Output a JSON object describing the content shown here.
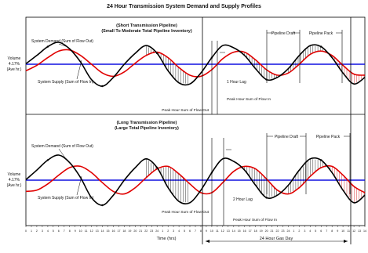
{
  "title": "24 Hour Transmission System Demand and Supply Profiles",
  "xlabel": "Time (hrs)",
  "gas_day_label": "24 Hour Gas Day",
  "chart_data": [
    {
      "type": "line",
      "panel": "top",
      "subtitle_line1": "(Short Transmission Pipeline)",
      "subtitle_line2": "(Small To Moderate Total Pipeline Inventory)",
      "ylabel_line1": "Volume",
      "ylabel_line2": "4.17%",
      "ylabel_line3": "(Ave hr.)",
      "series": [
        {
          "name": "System Demand (Sum of Flow Out)",
          "color": "#000000",
          "x": [
            0,
            2,
            4,
            6,
            8,
            10,
            12,
            14,
            16,
            18,
            20,
            22,
            24,
            26,
            28,
            30,
            32,
            34,
            36,
            38,
            40,
            42,
            44,
            46,
            48,
            50,
            52,
            54,
            56,
            58,
            60,
            62
          ],
          "y": [
            0.02,
            0.4,
            0.8,
            1.0,
            0.7,
            0.1,
            -0.7,
            -1.0,
            -0.6,
            0.0,
            0.5,
            0.85,
            0.5,
            -0.3,
            -0.85,
            -0.9,
            -0.4,
            0.3,
            0.85,
            0.75,
            0.4,
            -0.2,
            -0.7,
            -0.6,
            -0.2,
            0.4,
            0.85,
            0.8,
            0.3,
            -0.4,
            -0.9,
            -0.6
          ]
        },
        {
          "name": "System Supply (Sum of Flow In)",
          "color": "#e00000",
          "x": [
            0,
            2,
            4,
            6,
            8,
            10,
            12,
            14,
            16,
            18,
            20,
            22,
            24,
            26,
            28,
            30,
            32,
            34,
            36,
            38,
            40,
            42,
            44,
            46,
            48,
            50,
            52,
            54,
            56,
            58,
            60,
            62
          ],
          "y": [
            -0.3,
            -0.05,
            0.3,
            0.6,
            0.65,
            0.4,
            0.0,
            -0.4,
            -0.55,
            -0.35,
            0.05,
            0.4,
            0.55,
            0.3,
            -0.15,
            -0.5,
            -0.55,
            -0.25,
            0.25,
            0.55,
            0.55,
            0.2,
            -0.25,
            -0.5,
            -0.4,
            0.0,
            0.45,
            0.6,
            0.4,
            -0.05,
            -0.45,
            -0.5
          ]
        }
      ],
      "average_label": "4.17%",
      "annotations": {
        "demand_label": "System Demand (Sum of Flow Out)",
        "supply_label": "System Supply (Sum of Flow In)",
        "lag_label": "1 Hour Lag",
        "peak_out_label": "Peak Hour Sum of Flow Out",
        "peak_in_label": "Peak Hour Sum of Flow In",
        "draft_label": "Pipeline Draft",
        "pack_label": "Pipeline Pack"
      }
    },
    {
      "type": "line",
      "panel": "bottom",
      "subtitle_line1": "(Long Transmission Pipeline)",
      "subtitle_line2": "(Large Total Pipeline Inventory)",
      "ylabel_line1": "Volume",
      "ylabel_line2": "4.17%",
      "ylabel_line3": "(Ave hr.)",
      "series": [
        {
          "name": "System Demand (Sum of Flow Out)",
          "color": "#000000",
          "x": [
            0,
            2,
            4,
            6,
            8,
            10,
            12,
            14,
            16,
            18,
            20,
            22,
            24,
            26,
            28,
            30,
            32,
            34,
            36,
            38,
            40,
            42,
            44,
            46,
            48,
            50,
            52,
            54,
            56,
            58,
            60,
            62
          ],
          "y": [
            0.02,
            0.4,
            0.8,
            1.0,
            0.7,
            0.1,
            -0.7,
            -1.0,
            -0.6,
            0.0,
            0.5,
            0.85,
            0.5,
            -0.3,
            -0.85,
            -0.9,
            -0.4,
            0.3,
            0.85,
            0.75,
            0.4,
            -0.2,
            -0.7,
            -0.6,
            -0.2,
            0.4,
            0.85,
            0.8,
            0.3,
            -0.4,
            -0.9,
            -0.6
          ]
        },
        {
          "name": "System Supply (Sum of Flow In)",
          "color": "#e00000",
          "x": [
            0,
            2,
            4,
            6,
            8,
            10,
            12,
            14,
            16,
            18,
            20,
            22,
            24,
            26,
            28,
            30,
            32,
            34,
            36,
            38,
            40,
            42,
            44,
            46,
            48,
            50,
            52,
            54,
            56,
            58,
            60,
            62
          ],
          "y": [
            -0.45,
            -0.4,
            -0.15,
            0.2,
            0.5,
            0.55,
            0.3,
            -0.1,
            -0.45,
            -0.55,
            -0.3,
            0.1,
            0.45,
            0.55,
            0.25,
            -0.15,
            -0.5,
            -0.5,
            -0.1,
            0.35,
            0.55,
            0.45,
            0.05,
            -0.4,
            -0.55,
            -0.3,
            0.15,
            0.5,
            0.55,
            0.2,
            -0.25,
            -0.5
          ]
        }
      ],
      "average_label": "4.17%",
      "annotations": {
        "demand_label": "System Demand (Sum of Flow Out)",
        "supply_label": "System Supply (Sum of Flow In)",
        "lag_label": "2 Hour Lag",
        "peak_out_label": "Peak Hour Sum of Flow Out",
        "peak_in_label": "Peak Hour Sum of Flow In",
        "draft_label": "Pipeline Draft",
        "pack_label": "Pipeline Pack"
      }
    }
  ],
  "x_tick_labels": [
    "0",
    "1",
    "2",
    "3",
    "4",
    "5",
    "6",
    "7",
    "8",
    "9",
    "10",
    "11",
    "12",
    "13",
    "14",
    "15",
    "16",
    "17",
    "18",
    "19",
    "20",
    "21",
    "22",
    "23",
    "24",
    "1",
    "2",
    "3",
    "4",
    "5",
    "6",
    "7",
    "8",
    "9",
    "10",
    "11",
    "12",
    "13",
    "14",
    "15",
    "16",
    "17",
    "18",
    "19",
    "20",
    "21",
    "22",
    "23",
    "24",
    "1",
    "2",
    "3",
    "4",
    "5",
    "6",
    "7",
    "8",
    "9",
    "10",
    "11",
    "12",
    "13",
    "14"
  ]
}
